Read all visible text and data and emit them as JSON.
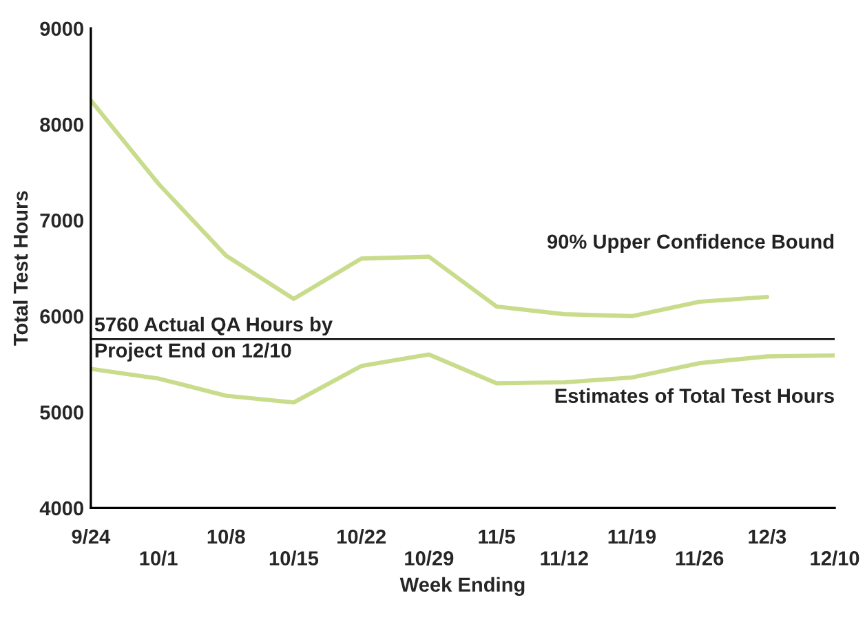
{
  "chart_data": {
    "type": "line",
    "xlabel": "Week Ending",
    "ylabel": "Total Test Hours",
    "categories": [
      "9/24",
      "10/1",
      "10/8",
      "10/15",
      "10/22",
      "10/29",
      "11/5",
      "11/12",
      "11/19",
      "11/26",
      "12/3",
      "12/10"
    ],
    "series": [
      {
        "name": "90% Upper Confidence Bound",
        "color": "#c8dc8c",
        "values": [
          8250,
          7380,
          6630,
          6180,
          6600,
          6620,
          6100,
          6020,
          6000,
          6150,
          6200,
          null
        ]
      },
      {
        "name": "Estimates of Total Test Hours",
        "color": "#c8dc8c",
        "values": [
          5450,
          5350,
          5170,
          5100,
          5480,
          5600,
          5300,
          5310,
          5360,
          5510,
          5580,
          5590
        ]
      }
    ],
    "ylim": [
      4000,
      9000
    ],
    "yticks": [
      4000,
      5000,
      6000,
      7000,
      8000,
      9000
    ],
    "ref_lines": [
      {
        "axis": "y",
        "value": 5760,
        "label": "5760 Actual QA Hours by\nProject End on 12/10",
        "color": "#000000"
      }
    ],
    "grid": false,
    "legend": false,
    "marker": "none",
    "line_style": "solid"
  }
}
